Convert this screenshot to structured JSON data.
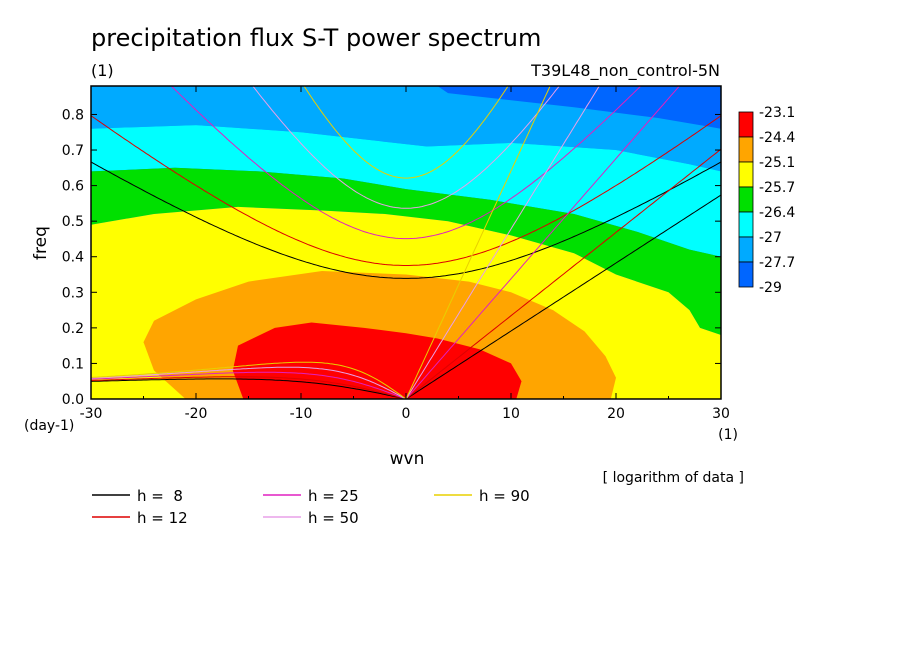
{
  "title": "precipitation flux S-T power spectrum",
  "subtitle_left": "(1)",
  "subtitle_right": "T39L48_non_control-5N",
  "note": "[ logarithm of data ]",
  "chart_data": {
    "type": "heatmap",
    "xlabel": "wvn",
    "ylabel": "freq",
    "x_unit": "(1)",
    "y_unit": "(day-1)",
    "xlim": [
      -30,
      30
    ],
    "ylim": [
      0.0,
      0.88
    ],
    "x_ticks": [
      "-30",
      "-20",
      "-10",
      "0",
      "10",
      "20",
      "30"
    ],
    "y_ticks": [
      "0.0",
      "0.1",
      "0.2",
      "0.3",
      "0.4",
      "0.5",
      "0.6",
      "0.7",
      "0.8"
    ],
    "colorbar": {
      "labels": [
        "-23.1",
        "-24.4",
        "-25.1",
        "-25.7",
        "-26.4",
        "-27",
        "-27.7",
        "-29"
      ],
      "colors": [
        "#ff0000",
        "#ffa500",
        "#ffff00",
        "#00e000",
        "#00ffff",
        "#00aaff",
        "#0066ff"
      ]
    },
    "regions": [
      {
        "level": "-29",
        "color": "#0066ff",
        "points": [
          [
            3,
            0.88
          ],
          [
            30,
            0.88
          ],
          [
            30,
            0.76
          ],
          [
            24,
            0.79
          ],
          [
            16,
            0.82
          ],
          [
            10,
            0.84
          ],
          [
            4,
            0.86
          ]
        ]
      },
      {
        "level": "-27.7",
        "color": "#00aaff",
        "points": [
          [
            -30,
            0.76
          ],
          [
            -20,
            0.77
          ],
          [
            -10,
            0.75
          ],
          [
            -4,
            0.73
          ],
          [
            2,
            0.71
          ],
          [
            10,
            0.72
          ],
          [
            20,
            0.7
          ],
          [
            27,
            0.66
          ],
          [
            30,
            0.64
          ],
          [
            30,
            0.76
          ],
          [
            24,
            0.79
          ],
          [
            16,
            0.82
          ],
          [
            10,
            0.84
          ],
          [
            4,
            0.86
          ],
          [
            3,
            0.88
          ],
          [
            -30,
            0.88
          ]
        ]
      },
      {
        "level": "-27",
        "color": "#00ffff",
        "points": [
          [
            -30,
            0.64
          ],
          [
            -22,
            0.65
          ],
          [
            -14,
            0.64
          ],
          [
            -6,
            0.62
          ],
          [
            0,
            0.59
          ],
          [
            8,
            0.56
          ],
          [
            16,
            0.52
          ],
          [
            22,
            0.47
          ],
          [
            27,
            0.42
          ],
          [
            30,
            0.4
          ],
          [
            30,
            0.64
          ],
          [
            27,
            0.66
          ],
          [
            20,
            0.7
          ],
          [
            10,
            0.72
          ],
          [
            2,
            0.71
          ],
          [
            -4,
            0.73
          ],
          [
            -10,
            0.75
          ],
          [
            -20,
            0.77
          ],
          [
            -30,
            0.76
          ]
        ]
      },
      {
        "level": "-26.4",
        "color": "#00e000",
        "points": [
          [
            -30,
            0.49
          ],
          [
            -24,
            0.52
          ],
          [
            -16,
            0.54
          ],
          [
            -8,
            0.53
          ],
          [
            -2,
            0.52
          ],
          [
            4,
            0.5
          ],
          [
            10,
            0.46
          ],
          [
            16,
            0.41
          ],
          [
            20,
            0.35
          ],
          [
            25,
            0.3
          ],
          [
            27,
            0.25
          ],
          [
            28,
            0.2
          ],
          [
            30,
            0.18
          ],
          [
            30,
            0.4
          ],
          [
            27,
            0.42
          ],
          [
            22,
            0.47
          ],
          [
            16,
            0.52
          ],
          [
            8,
            0.56
          ],
          [
            0,
            0.59
          ],
          [
            -6,
            0.62
          ],
          [
            -14,
            0.64
          ],
          [
            -22,
            0.65
          ],
          [
            -30,
            0.64
          ]
        ]
      },
      {
        "level": "-25.7",
        "color": "#ffff00",
        "points": [
          [
            -30,
            0.0
          ],
          [
            30,
            0.0
          ],
          [
            30,
            0.18
          ],
          [
            28,
            0.2
          ],
          [
            27,
            0.25
          ],
          [
            25,
            0.3
          ],
          [
            20,
            0.35
          ],
          [
            16,
            0.41
          ],
          [
            10,
            0.46
          ],
          [
            4,
            0.5
          ],
          [
            -2,
            0.52
          ],
          [
            -8,
            0.53
          ],
          [
            -16,
            0.54
          ],
          [
            -24,
            0.52
          ],
          [
            -30,
            0.49
          ]
        ]
      },
      {
        "level": "-25.1",
        "color": "#ffa500",
        "points": [
          [
            -21,
            0.0
          ],
          [
            19.5,
            0.0
          ],
          [
            20,
            0.06
          ],
          [
            19,
            0.12
          ],
          [
            17,
            0.19
          ],
          [
            14,
            0.25
          ],
          [
            10,
            0.3
          ],
          [
            6,
            0.33
          ],
          [
            0,
            0.35
          ],
          [
            -8,
            0.36
          ],
          [
            -15,
            0.33
          ],
          [
            -20,
            0.28
          ],
          [
            -24,
            0.22
          ],
          [
            -25,
            0.16
          ],
          [
            -24,
            0.08
          ]
        ]
      },
      {
        "level": "-24.4",
        "color": "#ff0000",
        "points": [
          [
            -15.5,
            0.0
          ],
          [
            10.5,
            0.0
          ],
          [
            11,
            0.05
          ],
          [
            10,
            0.1
          ],
          [
            7,
            0.14
          ],
          [
            3,
            0.17
          ],
          [
            0,
            0.185
          ],
          [
            -4,
            0.2
          ],
          [
            -9,
            0.215
          ],
          [
            -12.5,
            0.2
          ],
          [
            -16,
            0.15
          ],
          [
            -16.5,
            0.08
          ]
        ]
      }
    ],
    "dispersion_curves": [
      {
        "h": "8",
        "label": "h =  8",
        "color": "#000000"
      },
      {
        "h": "12",
        "label": "h = 12",
        "color": "#dd0000"
      },
      {
        "h": "25",
        "label": "h = 25",
        "color": "#e020c0"
      },
      {
        "h": "50",
        "label": "h = 50",
        "color": "#e8a0e8"
      },
      {
        "h": "90",
        "label": "h = 90",
        "color": "#e8d000"
      }
    ]
  }
}
